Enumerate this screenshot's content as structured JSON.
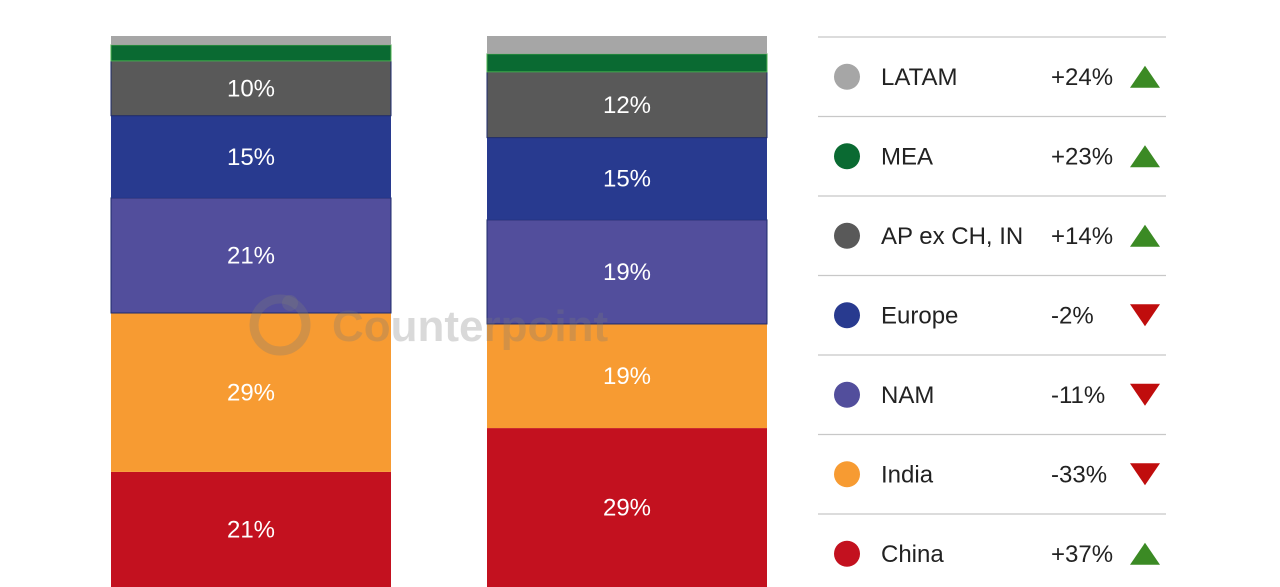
{
  "watermark": {
    "text": "Counterpoint"
  },
  "chart_data": {
    "type": "bar",
    "stacked": true,
    "percent": true,
    "categories": [
      "",
      ""
    ],
    "series": [
      {
        "name": "China",
        "color": "#c3111f",
        "values": [
          21,
          29
        ]
      },
      {
        "name": "India",
        "color": "#f79b32",
        "values": [
          29,
          19
        ]
      },
      {
        "name": "NAM",
        "color": "#524e9c",
        "values": [
          21,
          19
        ]
      },
      {
        "name": "Europe",
        "color": "#283a8f",
        "values": [
          15,
          15
        ]
      },
      {
        "name": "AP ex CH, IN",
        "color": "#595959",
        "values": [
          10,
          12
        ]
      },
      {
        "name": "MEA",
        "color": "#0a6a32",
        "values": [
          null,
          null
        ]
      },
      {
        "name": "LATAM",
        "color": "#a6a6a6",
        "values": [
          null,
          null
        ]
      }
    ],
    "segment_labels": [
      [
        "21%",
        "29%",
        "21%",
        "15%",
        "10%"
      ],
      [
        "29%",
        "19%",
        "19%",
        "15%",
        "12%"
      ]
    ],
    "legend": {
      "placement": "right",
      "items": [
        {
          "name": "LATAM",
          "color": "#a6a6a6",
          "change": "+24%",
          "direction": "up"
        },
        {
          "name": "MEA",
          "color": "#0a6a32",
          "change": "+23%",
          "direction": "up"
        },
        {
          "name": "AP ex CH, IN",
          "color": "#595959",
          "change": "+14%",
          "direction": "up"
        },
        {
          "name": "Europe",
          "color": "#283a8f",
          "change": "-2%",
          "direction": "down"
        },
        {
          "name": "NAM",
          "color": "#524e9c",
          "change": "-11%",
          "direction": "down"
        },
        {
          "name": "India",
          "color": "#f79b32",
          "change": "-33%",
          "direction": "down"
        },
        {
          "name": "China",
          "color": "#c3111f",
          "change": "+37%",
          "direction": "up"
        }
      ],
      "up_color": "#3b8a24",
      "down_color": "#c00d0d"
    },
    "grid": false
  }
}
